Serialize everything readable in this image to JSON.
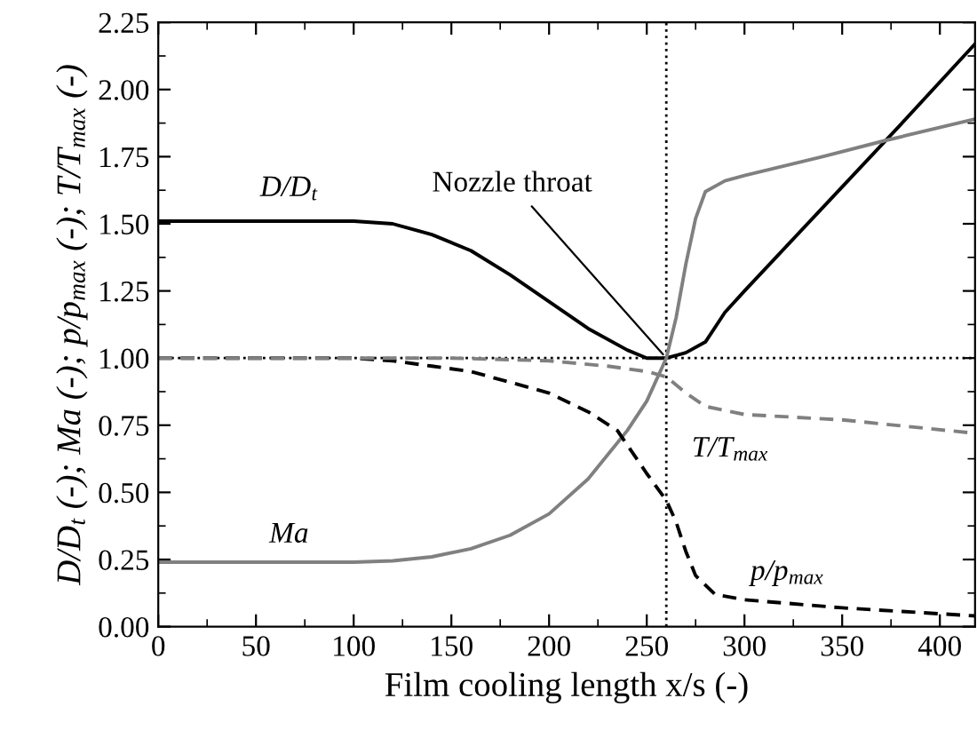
{
  "chart_data": {
    "type": "line",
    "xlabel": "Film cooling length x/s (-)",
    "ylabel": "D/D$_{t}$ (-); Ma (-); p/p$_{max}$ (-); T/T$_{max}$ (-)",
    "xlim": [
      0,
      418
    ],
    "ylim": [
      0,
      2.25
    ],
    "xticks": [
      0,
      50,
      100,
      150,
      200,
      250,
      300,
      350,
      400
    ],
    "yticks": [
      {
        "value": 0,
        "label": "0.00"
      },
      {
        "value": 0.25,
        "label": "0.25"
      },
      {
        "value": 0.5,
        "label": "0.50"
      },
      {
        "value": 0.75,
        "label": "0.75"
      },
      {
        "value": 1,
        "label": "1.00"
      },
      {
        "value": 1.25,
        "label": "1.25"
      },
      {
        "value": 1.5,
        "label": "1.50"
      },
      {
        "value": 1.75,
        "label": "1.75"
      },
      {
        "value": 2,
        "label": "2.00"
      },
      {
        "value": 2.25,
        "label": "2.25"
      }
    ],
    "grid": false,
    "legend": false,
    "marker": "none",
    "series": [
      {
        "name": "D/D$_{t}$",
        "color": "#000000",
        "line_style": "solid",
        "x": [
          0,
          100,
          120,
          140,
          160,
          180,
          200,
          220,
          240,
          250,
          260,
          270,
          280,
          290,
          300,
          340,
          380,
          418
        ],
        "values": [
          1.51,
          1.51,
          1.5,
          1.46,
          1.4,
          1.31,
          1.21,
          1.11,
          1.03,
          1.0,
          1.0,
          1.02,
          1.06,
          1.17,
          1.25,
          1.56,
          1.87,
          2.17
        ]
      },
      {
        "name": "Ma",
        "color": "#808080",
        "line_style": "solid",
        "x": [
          0,
          100,
          120,
          140,
          160,
          180,
          200,
          220,
          240,
          250,
          260,
          265,
          270,
          275,
          280,
          290,
          300,
          340,
          372,
          418
        ],
        "values": [
          0.24,
          0.24,
          0.245,
          0.26,
          0.29,
          0.34,
          0.42,
          0.55,
          0.73,
          0.84,
          1.0,
          1.15,
          1.35,
          1.52,
          1.62,
          1.66,
          1.68,
          1.75,
          1.81,
          1.89
        ]
      },
      {
        "name": "p/p$_{max}$",
        "color": "#000000",
        "line_style": "dashed",
        "x": [
          0,
          100,
          120,
          140,
          160,
          180,
          200,
          220,
          235,
          250,
          260,
          265,
          270,
          275,
          285,
          300,
          350,
          418
        ],
        "values": [
          1.0,
          1.0,
          0.99,
          0.97,
          0.95,
          0.91,
          0.87,
          0.8,
          0.73,
          0.57,
          0.47,
          0.39,
          0.28,
          0.19,
          0.12,
          0.1,
          0.07,
          0.04
        ]
      },
      {
        "name": "T/T$_{max}$",
        "color": "#808080",
        "line_style": "dashed",
        "x": [
          0,
          150,
          200,
          230,
          250,
          260,
          270,
          280,
          300,
          350,
          418
        ],
        "values": [
          1.0,
          1.0,
          0.99,
          0.97,
          0.95,
          0.93,
          0.87,
          0.82,
          0.79,
          0.77,
          0.72
        ]
      }
    ],
    "ref_lines": [
      {
        "axis": "x",
        "value": 260,
        "color": "#000000",
        "line_style": "dotted"
      },
      {
        "axis": "y",
        "value": 1.0,
        "color": "#000000",
        "line_style": "dotted"
      }
    ],
    "annotations": [
      {
        "text": "Nozzle throat",
        "x": 260,
        "y": 1.0
      }
    ]
  }
}
